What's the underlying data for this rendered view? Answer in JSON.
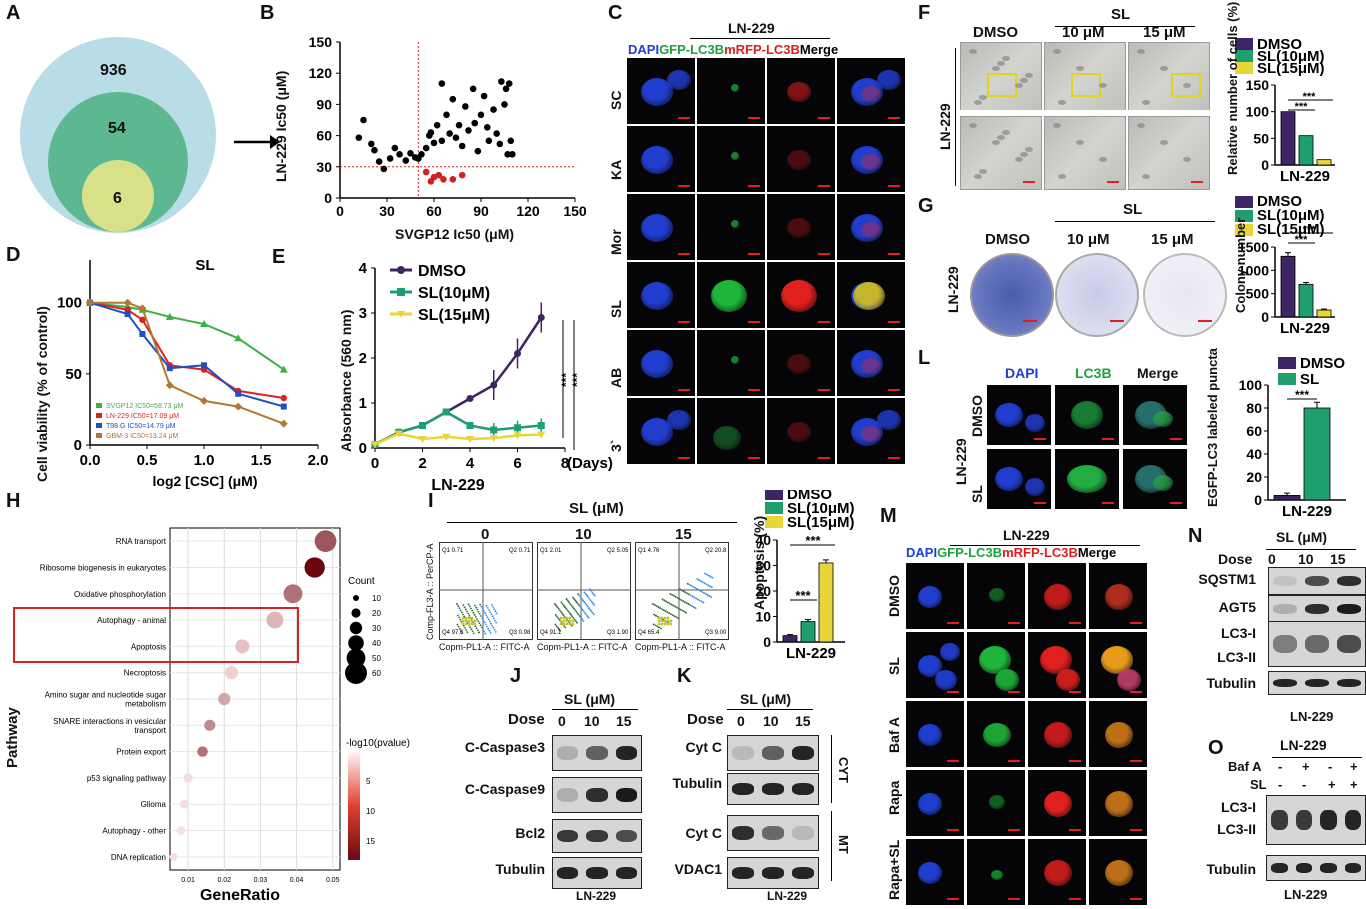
{
  "panels": {
    "A": {
      "label": "A",
      "counts": [
        "936",
        "54",
        "6"
      ]
    },
    "B": {
      "label": "B",
      "xlabel": "SVGP12 Ic50 (μM)",
      "ylabel": "LN-229 Ic50 (μM)",
      "xticks": [
        "0",
        "30",
        "60",
        "90",
        "120",
        "150"
      ],
      "yticks": [
        "0",
        "30",
        "60",
        "90",
        "120",
        "150"
      ]
    },
    "C": {
      "label": "C",
      "cell": "LN-229",
      "channels": [
        "DAPI",
        "GFP-LC3B",
        "mRFP-LC3B",
        "Merge"
      ],
      "rows": [
        "SC",
        "KA",
        "Mor",
        "SL",
        "AB",
        "3`"
      ]
    },
    "D": {
      "label": "D",
      "title": "SL",
      "xlabel": "log2 [CSC] (μM)",
      "ylabel": "Cell viability (% of control)",
      "xticks": [
        "0.0",
        "0.5",
        "1.0",
        "1.5",
        "2.0"
      ],
      "yticks": [
        "0",
        "50",
        "100"
      ],
      "legend": [
        "SVGP12 IC50=58.73 μM",
        "LN-229 IC50=17.09 μM",
        "T98 G IC50=14.79 μM",
        "GBM-3 IC50=13.24 μM"
      ]
    },
    "E": {
      "label": "E",
      "ylabel": "Absorbance (560 nm)",
      "xlabel": "LN-229",
      "xunit": "(Days)",
      "xticks": [
        "0",
        "2",
        "4",
        "6",
        "8"
      ],
      "yticks": [
        "0",
        "1",
        "2",
        "3",
        "4"
      ],
      "legend": [
        "DMSO",
        "SL(10μM)",
        "SL(15μM)"
      ],
      "stars": [
        "***",
        "***"
      ]
    },
    "F": {
      "label": "F",
      "conds": [
        "DMSO",
        "10 μM",
        "15 μM"
      ],
      "sl": "SL",
      "cell": "LN-229",
      "legend": [
        "DMSO",
        "SL(10μM)",
        "SL(15μM)"
      ],
      "ylabel": "Relative number of cells (%)",
      "yticks": [
        "0",
        "50",
        "100",
        "150"
      ],
      "xlabel": "LN-229",
      "stars": "***"
    },
    "G": {
      "label": "G",
      "conds": [
        "DMSO",
        "10 μM",
        "15 μM"
      ],
      "sl": "SL",
      "cell": "LN-229",
      "legend": [
        "DMSO",
        "SL(10μM)",
        "SL(15μM)"
      ],
      "ylabel": "Colony number",
      "yticks": [
        "0",
        "500",
        "1000",
        "1500"
      ],
      "xlabel": "LN-229",
      "stars": "***"
    },
    "H": {
      "label": "H",
      "xlabel": "GeneRatio",
      "ylabel": "Pathway",
      "xticks": [
        "0.01",
        "0.02",
        "0.03",
        "0.04",
        "0.05"
      ],
      "size_title": "Count",
      "size_values": [
        "10",
        "20",
        "30",
        "40",
        "50",
        "60"
      ],
      "color_title": "-log10(pvalue)",
      "color_values": [
        "5",
        "10",
        "15"
      ]
    },
    "I": {
      "label": "I",
      "title": "SL (μM)",
      "doses": [
        "0",
        "10",
        "15"
      ],
      "yaxis": "Comp-FL3-A :: PerCP-A",
      "xaxis": "Copm-PL1-A :: FITC-A",
      "quads": [
        [
          "Q1 0.71",
          "Q2 0.71",
          "Q4 97.6",
          "Q3 0.98"
        ],
        [
          "Q1 2.01",
          "Q2 5.05",
          "Q4 91.1",
          "Q3 1.90"
        ],
        [
          "Q1 4.76",
          "Q2 20.8",
          "Q4 65.4",
          "Q3 9.00"
        ]
      ],
      "legend": [
        "DMSO",
        "SL(10μM)",
        "SL(15μM)"
      ],
      "ylabel": "Apoptosis (%)",
      "yticks": [
        "0",
        "10",
        "20",
        "30",
        "40"
      ],
      "xlabel": "LN-229",
      "stars": [
        "***",
        "***"
      ]
    },
    "J": {
      "label": "J",
      "title": "SL (μM)",
      "dose_label": "Dose",
      "doses": [
        "0",
        "10",
        "15"
      ],
      "rows": [
        "C-Caspase3",
        "C-Caspase9",
        "Bcl2",
        "Tubulin"
      ],
      "cell": "LN-229"
    },
    "K": {
      "label": "K",
      "title": "SL (μM)",
      "dose_label": "Dose",
      "doses": [
        "0",
        "10",
        "15"
      ],
      "rows": [
        "Cyt C",
        "Tubulin",
        "Cyt C",
        "VDAC1"
      ],
      "groups": [
        "CYT",
        "MT"
      ],
      "cell": "LN-229"
    },
    "L": {
      "label": "L",
      "channels": [
        "DAPI",
        "LC3B",
        "Merge"
      ],
      "rows": [
        "DMSO",
        "SL"
      ],
      "cell": "LN-229",
      "legend": [
        "DMSO",
        "SL"
      ],
      "ylabel": "EGFP-LC3 labeled puncta",
      "yticks": [
        "0",
        "20",
        "40",
        "60",
        "80",
        "100"
      ],
      "xlabel": "LN-229",
      "stars": "***"
    },
    "M": {
      "label": "M",
      "cell": "LN-229",
      "channels": [
        "DAPI",
        "GFP-LC3B",
        "mRFP-LC3B",
        "Merge"
      ],
      "rows": [
        "DMSO",
        "SL",
        "Baf A",
        "Rapa",
        "Rapa+SL"
      ]
    },
    "N": {
      "label": "N",
      "title": "SL (μM)",
      "dose_label": "Dose",
      "doses": [
        "0",
        "10",
        "15"
      ],
      "rows": [
        "SQSTM1",
        "AGT5",
        "LC3-I",
        "LC3-II",
        "Tubulin"
      ],
      "cell": "LN-229"
    },
    "O": {
      "label": "O",
      "title": "LN-229",
      "bafa": "Baf A",
      "sl": "SL",
      "bafa_signs": [
        "-",
        "+",
        "-",
        "+"
      ],
      "sl_signs": [
        "-",
        "-",
        "+",
        "+"
      ],
      "rows": [
        "LC3-I",
        "LC3-II",
        "Tubulin"
      ],
      "cell": "LN-229"
    }
  },
  "chart_data": [
    {
      "type": "scatter",
      "panel": "B",
      "title": "",
      "xlabel": "SVGP12 Ic50 (μM)",
      "ylabel": "LN-229 Ic50 (μM)",
      "xlim": [
        0,
        150
      ],
      "ylim": [
        0,
        150
      ],
      "thresholds": {
        "x": 50,
        "y": 30
      },
      "series": [
        {
          "name": "black",
          "color": "#000000",
          "points": [
            [
              12,
              58
            ],
            [
              15,
              75
            ],
            [
              20,
              52
            ],
            [
              22,
              46
            ],
            [
              25,
              35
            ],
            [
              28,
              28
            ],
            [
              32,
              38
            ],
            [
              35,
              48
            ],
            [
              38,
              42
            ],
            [
              42,
              36
            ],
            [
              45,
              43
            ],
            [
              48,
              39
            ],
            [
              50,
              38
            ],
            [
              52,
              42
            ],
            [
              55,
              48
            ],
            [
              57,
              60
            ],
            [
              58,
              63
            ],
            [
              60,
              53
            ],
            [
              62,
              70
            ],
            [
              65,
              110
            ],
            [
              65,
              55
            ],
            [
              68,
              80
            ],
            [
              70,
              62
            ],
            [
              72,
              95
            ],
            [
              74,
              58
            ],
            [
              76,
              70
            ],
            [
              78,
              50
            ],
            [
              80,
              88
            ],
            [
              82,
              65
            ],
            [
              85,
              105
            ],
            [
              86,
              72
            ],
            [
              88,
              45
            ],
            [
              90,
              80
            ],
            [
              92,
              98
            ],
            [
              94,
              68
            ],
            [
              95,
              55
            ],
            [
              98,
              85
            ],
            [
              100,
              62
            ],
            [
              102,
              52
            ],
            [
              103,
              112
            ],
            [
              105,
              90
            ],
            [
              106,
              105
            ],
            [
              107,
              42
            ],
            [
              108,
              110
            ],
            [
              109,
              55
            ],
            [
              110,
              42
            ]
          ]
        },
        {
          "name": "red",
          "color": "#d02020",
          "points": [
            [
              55,
              25
            ],
            [
              58,
              16
            ],
            [
              60,
              20
            ],
            [
              63,
              22
            ],
            [
              66,
              18
            ],
            [
              72,
              18
            ],
            [
              78,
              22
            ]
          ]
        }
      ]
    },
    {
      "type": "line",
      "panel": "D",
      "title": "SL",
      "xlabel": "log2 [CSC] (μM)",
      "ylabel": "Cell viability (% of control)",
      "xlim": [
        0,
        2
      ],
      "ylim": [
        0,
        130
      ],
      "x": [
        0,
        0.33,
        0.46,
        0.7,
        1.0,
        1.3,
        1.7
      ],
      "series": [
        {
          "name": "SVGP12 IC50=58.73 μM",
          "color": "#3cb043",
          "values": [
            100,
            97,
            95,
            90,
            85,
            75,
            53
          ]
        },
        {
          "name": "LN-229 IC50=17.09 μM",
          "color": "#e02020",
          "values": [
            100,
            95,
            88,
            56,
            53,
            38,
            33
          ]
        },
        {
          "name": "T98 G IC50=14.79 μM",
          "color": "#2050c0",
          "values": [
            100,
            92,
            78,
            54,
            56,
            36,
            27
          ]
        },
        {
          "name": "GBM-3 IC50=13.24 μM",
          "color": "#b07830",
          "values": [
            100,
            100,
            96,
            42,
            31,
            27,
            15
          ]
        }
      ]
    },
    {
      "type": "line",
      "panel": "E",
      "xlabel": "LN-229",
      "ylabel": "Absorbance (560 nm)",
      "xlim": [
        0,
        8
      ],
      "ylim": [
        0,
        4
      ],
      "x": [
        0,
        1,
        2,
        3,
        4,
        5,
        6,
        7
      ],
      "series": [
        {
          "name": "DMSO",
          "color": "#3d2462",
          "values": [
            0.08,
            0.35,
            0.5,
            0.8,
            1.1,
            1.4,
            2.1,
            2.9
          ]
        },
        {
          "name": "SL(10μM)",
          "color": "#1f9e6e",
          "values": [
            0.08,
            0.35,
            0.5,
            0.8,
            0.5,
            0.4,
            0.45,
            0.5
          ]
        },
        {
          "name": "SL(15μM)",
          "color": "#e8d53a",
          "values": [
            0.08,
            0.32,
            0.2,
            0.25,
            0.2,
            0.22,
            0.28,
            0.3
          ]
        }
      ]
    },
    {
      "type": "bar",
      "panel": "F",
      "categories": [
        "DMSO",
        "SL(10μM)",
        "SL(15μM)"
      ],
      "values": [
        100,
        55,
        10
      ],
      "ylim": [
        0,
        150
      ]
    },
    {
      "type": "bar",
      "panel": "G",
      "categories": [
        "DMSO",
        "SL(10μM)",
        "SL(15μM)"
      ],
      "values": [
        1300,
        700,
        150
      ],
      "ylim": [
        0,
        1500
      ]
    },
    {
      "type": "bar",
      "panel": "I",
      "categories": [
        "DMSO",
        "SL(10μM)",
        "SL(15μM)"
      ],
      "values": [
        2.5,
        8,
        31
      ],
      "ylim": [
        0,
        40
      ]
    },
    {
      "type": "bar",
      "panel": "L",
      "categories": [
        "DMSO",
        "SL"
      ],
      "values": [
        4,
        80
      ],
      "ylim": [
        0,
        100
      ]
    },
    {
      "type": "scatter",
      "panel": "H",
      "xlabel": "GeneRatio",
      "ylabel": "Pathway",
      "xlim": [
        0.005,
        0.052
      ],
      "categories": [
        "RNA transport",
        "Ribosome biogenesis in eukaryotes",
        "Oxidative phosphorylation",
        "Autophagy - animal",
        "Apoptosis",
        "Necroptosis",
        "Amino sugar and nucleotide sugar metabolism",
        "SNARE interactions in vesicular transport",
        "Protein export",
        "p53 signaling pathway",
        "Glioma",
        "Autophagy - other",
        "DNA replication"
      ],
      "generatio": [
        0.048,
        0.045,
        0.039,
        0.034,
        0.025,
        0.022,
        0.02,
        0.016,
        0.014,
        0.01,
        0.009,
        0.008,
        0.006
      ],
      "count": [
        55,
        50,
        45,
        38,
        28,
        25,
        22,
        18,
        16,
        12,
        10,
        9,
        7
      ],
      "neglog10p": [
        11,
        17,
        9,
        4,
        3,
        2,
        5,
        7,
        9,
        1,
        1,
        1,
        1
      ]
    }
  ]
}
